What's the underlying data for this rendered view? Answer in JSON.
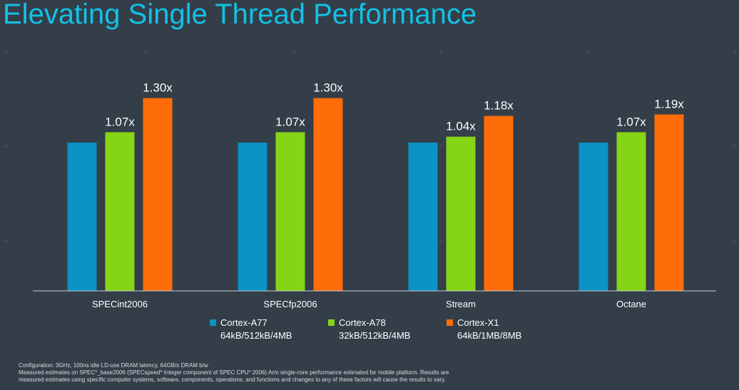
{
  "title": "Elevating Single Thread Performance",
  "colors": {
    "background": "#333e48",
    "title": "#13c1e6"
  },
  "chart_data": {
    "type": "bar",
    "title": "",
    "xlabel": "",
    "ylabel": "",
    "ylim": [
      0,
      1.5
    ],
    "grid": false,
    "legend_position": "bottom",
    "categories": [
      "SPECint2006",
      "SPECfp2006",
      "Stream",
      "Octane"
    ],
    "series": [
      {
        "name": "Cortex-A77",
        "detail": "64kB/512kB/4MB",
        "color": "#0a93c4",
        "values": [
          1.0,
          1.0,
          1.0,
          1.0
        ],
        "labels": [
          "",
          "",
          "",
          ""
        ]
      },
      {
        "name": "Cortex-A78",
        "detail": "32kB/512kB/4MB",
        "color": "#86d416",
        "values": [
          1.07,
          1.07,
          1.04,
          1.07
        ],
        "labels": [
          "1.07x",
          "1.07x",
          "1.04x",
          "1.07x"
        ]
      },
      {
        "name": "Cortex-X1",
        "detail": "64kB/1MB/8MB",
        "color": "#ff6c0a",
        "values": [
          1.3,
          1.3,
          1.18,
          1.19
        ],
        "labels": [
          "1.30x",
          "1.30x",
          "1.18x",
          "1.19x"
        ]
      }
    ]
  },
  "footer": {
    "line1": "Configuration: 3GHz, 100ns idle LD-use DRAM latency, 64GB/s DRAM b/w",
    "line2": "Measured estimates on SPEC*_base2006 (SPECspeed* Integer component of SPEC CPU* 2006) Arm single-core performance estimated for mobile platform. Results are",
    "line3": "measured estimates using specific computer systems, software, components, operations, and functions and changes to any of these factors will cause the results to vary."
  }
}
